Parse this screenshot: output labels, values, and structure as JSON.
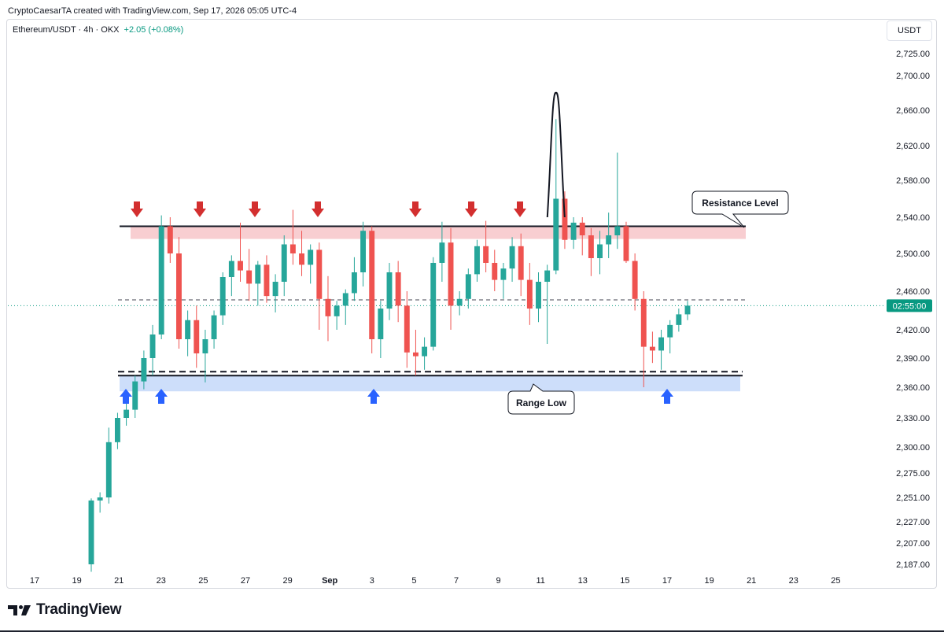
{
  "header": {
    "credit": "CryptoCaesarTA created with TradingView.com, Sep 17, 2026 05:05 UTC-4"
  },
  "legend": {
    "symbol": "Ethereum/USDT · 4h · OKX",
    "change": "+2.05 (+0.08%)"
  },
  "currency_button": "USDT",
  "footer": {
    "brand": "TradingView"
  },
  "colors": {
    "up": "#26a69a",
    "down": "#ef5350",
    "resistance_fill": "#f7c5c9",
    "range_fill": "#c8daf9",
    "red_arrow": "#d32f2f",
    "blue_arrow": "#2962ff",
    "price_tag": "#089981"
  },
  "chart_data": {
    "type": "candlestick",
    "symbol": "Ethereum/USDT",
    "timeframe": "4h",
    "exchange": "OKX",
    "y_ticks": [
      "2,725.00",
      "2,700.00",
      "2,660.00",
      "2,620.00",
      "2,580.00",
      "2,540.00",
      "2,500.00",
      "2,460.00",
      "2,420.00",
      "2,390.00",
      "2,360.00",
      "2,330.00",
      "2,300.00",
      "2,275.00",
      "2,251.00",
      "2,227.00",
      "2,207.00",
      "2,187.00"
    ],
    "x_ticks": [
      "17",
      "19",
      "21",
      "23",
      "25",
      "27",
      "29",
      "Sep",
      "3",
      "5",
      "7",
      "9",
      "11",
      "13",
      "15",
      "17",
      "19",
      "21",
      "23",
      "25"
    ],
    "countdown_tag": "02:55:00",
    "current_price_approx": 2445,
    "resistance_level": 2530,
    "range_low": 2372,
    "annotations": [
      "Resistance Level",
      "Range Low"
    ],
    "candles": [
      [
        2187,
        2250,
        2180,
        2248
      ],
      [
        2248,
        2256,
        2236,
        2251
      ],
      [
        2251,
        2320,
        2245,
        2305
      ],
      [
        2305,
        2335,
        2298,
        2330
      ],
      [
        2330,
        2345,
        2322,
        2338
      ],
      [
        2338,
        2372,
        2330,
        2366
      ],
      [
        2366,
        2398,
        2358,
        2390
      ],
      [
        2390,
        2425,
        2372,
        2415
      ],
      [
        2415,
        2542,
        2410,
        2530
      ],
      [
        2530,
        2540,
        2490,
        2500
      ],
      [
        2500,
        2518,
        2400,
        2410
      ],
      [
        2410,
        2440,
        2392,
        2430
      ],
      [
        2430,
        2445,
        2380,
        2395
      ],
      [
        2395,
        2420,
        2365,
        2410
      ],
      [
        2410,
        2440,
        2400,
        2435
      ],
      [
        2435,
        2480,
        2425,
        2475
      ],
      [
        2475,
        2498,
        2455,
        2492
      ],
      [
        2492,
        2534,
        2470,
        2482
      ],
      [
        2482,
        2505,
        2450,
        2468
      ],
      [
        2468,
        2492,
        2445,
        2488
      ],
      [
        2488,
        2498,
        2448,
        2455
      ],
      [
        2455,
        2478,
        2438,
        2470
      ],
      [
        2470,
        2520,
        2455,
        2510
      ],
      [
        2510,
        2548,
        2488,
        2500
      ],
      [
        2500,
        2525,
        2476,
        2488
      ],
      [
        2488,
        2510,
        2468,
        2504
      ],
      [
        2504,
        2512,
        2420,
        2452
      ],
      [
        2452,
        2476,
        2408,
        2434
      ],
      [
        2434,
        2450,
        2420,
        2445
      ],
      [
        2445,
        2462,
        2425,
        2458
      ],
      [
        2458,
        2496,
        2450,
        2480
      ],
      [
        2480,
        2535,
        2465,
        2525
      ],
      [
        2525,
        2530,
        2395,
        2410
      ],
      [
        2410,
        2450,
        2390,
        2442
      ],
      [
        2442,
        2490,
        2430,
        2480
      ],
      [
        2480,
        2492,
        2428,
        2445
      ],
      [
        2445,
        2460,
        2380,
        2396
      ],
      [
        2396,
        2420,
        2372,
        2392
      ],
      [
        2392,
        2412,
        2378,
        2402
      ],
      [
        2402,
        2496,
        2398,
        2490
      ],
      [
        2490,
        2535,
        2470,
        2512
      ],
      [
        2512,
        2528,
        2420,
        2445
      ],
      [
        2445,
        2460,
        2435,
        2452
      ],
      [
        2452,
        2484,
        2442,
        2478
      ],
      [
        2478,
        2515,
        2470,
        2508
      ],
      [
        2508,
        2536,
        2480,
        2490
      ],
      [
        2490,
        2504,
        2460,
        2472
      ],
      [
        2472,
        2490,
        2452,
        2484
      ],
      [
        2484,
        2518,
        2470,
        2508
      ],
      [
        2508,
        2522,
        2455,
        2472
      ],
      [
        2472,
        2490,
        2425,
        2442
      ],
      [
        2442,
        2480,
        2428,
        2470
      ],
      [
        2470,
        2488,
        2405,
        2482
      ],
      [
        2482,
        2650,
        2478,
        2560
      ],
      [
        2560,
        2568,
        2505,
        2515
      ],
      [
        2515,
        2540,
        2505,
        2534
      ],
      [
        2534,
        2540,
        2498,
        2520
      ],
      [
        2520,
        2528,
        2476,
        2495
      ],
      [
        2495,
        2525,
        2478,
        2510
      ],
      [
        2510,
        2545,
        2495,
        2520
      ],
      [
        2520,
        2612,
        2505,
        2530
      ],
      [
        2530,
        2535,
        2490,
        2492
      ],
      [
        2492,
        2500,
        2440,
        2452
      ],
      [
        2452,
        2460,
        2360,
        2402
      ],
      [
        2402,
        2418,
        2385,
        2398
      ],
      [
        2398,
        2420,
        2378,
        2412
      ],
      [
        2412,
        2430,
        2395,
        2425
      ],
      [
        2425,
        2442,
        2418,
        2436
      ],
      [
        2436,
        2450,
        2430,
        2445
      ]
    ]
  }
}
